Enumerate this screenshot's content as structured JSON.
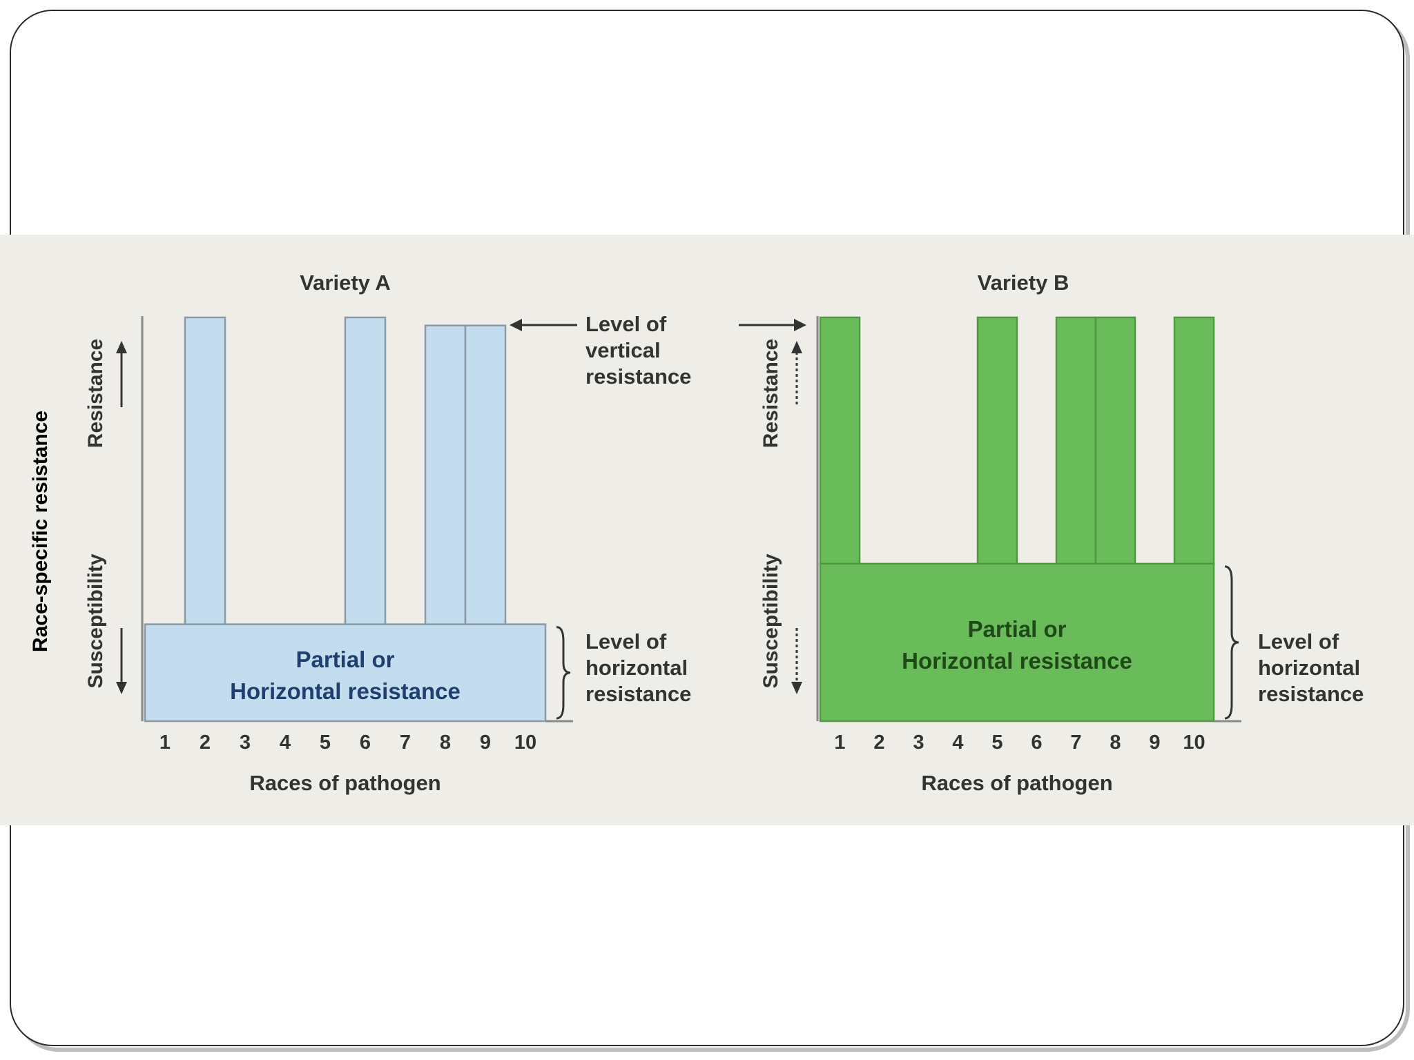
{
  "colors": {
    "panel_bg": "#efede8",
    "variety_a_fill": "#c3dcee",
    "variety_a_stroke": "#8a9aa8",
    "variety_b_fill": "#6abb59",
    "variety_b_stroke": "#4f9a40",
    "text_a": "#1f3f6e",
    "text_b": "#1e4a18",
    "text_dark": "#333333",
    "axis": "#888888"
  },
  "figure": {
    "y_axis_title": "Race-specific resistance",
    "vertical_label": [
      "Level of",
      "vertical",
      "resistance"
    ],
    "horizontal_label": [
      "Level of",
      "horizontal",
      "resistance"
    ]
  },
  "chart_data": [
    {
      "type": "bar",
      "title": "Variety A",
      "xlabel": "Races of pathogen",
      "ylabel_top": "Resistance",
      "ylabel_bottom": "Susceptibility",
      "categories": [
        "1",
        "2",
        "3",
        "4",
        "5",
        "6",
        "7",
        "8",
        "9",
        "10"
      ],
      "ylim": [
        0,
        100
      ],
      "horizontal_resistance": {
        "value": 24,
        "label_line1": "Partial or",
        "label_line2": "Horizontal resistance"
      },
      "values": [
        24,
        100,
        24,
        24,
        24,
        100,
        24,
        98,
        98,
        24
      ]
    },
    {
      "type": "bar",
      "title": "Variety B",
      "xlabel": "Races of pathogen",
      "ylabel_top": "Resistance",
      "ylabel_bottom": "Susceptibility",
      "categories": [
        "1",
        "2",
        "3",
        "4",
        "5",
        "6",
        "7",
        "8",
        "9",
        "10"
      ],
      "ylim": [
        0,
        100
      ],
      "horizontal_resistance": {
        "value": 39,
        "label_line1": "Partial or",
        "label_line2": "Horizontal resistance"
      },
      "values": [
        100,
        39,
        39,
        39,
        100,
        39,
        100,
        100,
        39,
        100
      ]
    }
  ]
}
